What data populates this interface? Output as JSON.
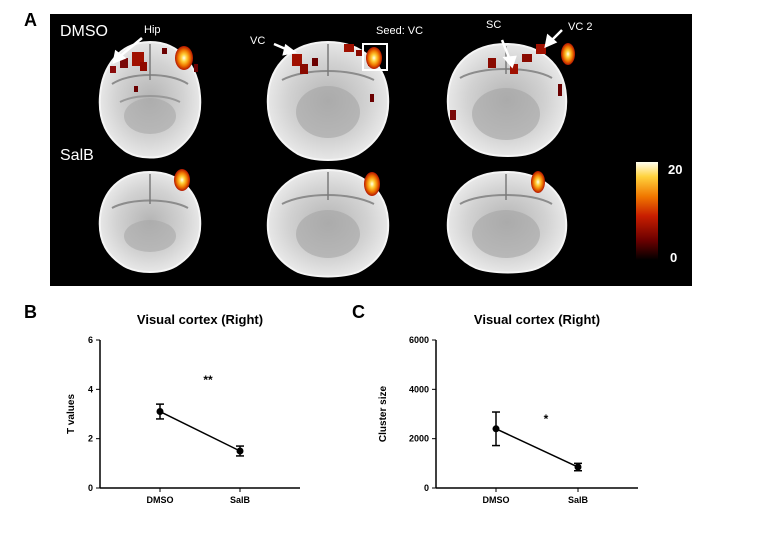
{
  "panel_a": {
    "label": "A",
    "rows": [
      {
        "label": "DMSO",
        "annotations": [
          "Hip",
          "VC",
          "Seed: VC",
          "SC",
          "VC 2"
        ]
      },
      {
        "label": "SalB",
        "annotations": []
      }
    ],
    "colorbar": {
      "max_label": "20",
      "min_label": "0",
      "colors": [
        "#000000",
        "#6b0000",
        "#c81e00",
        "#f07800",
        "#ffd23c",
        "#fffff0"
      ]
    }
  },
  "chart_data": [
    {
      "panel_label": "B",
      "type": "line",
      "title": "Visual cortex (Right)",
      "xlabel": "",
      "ylabel": "T values",
      "categories": [
        "DMSO",
        "SalB"
      ],
      "values": [
        3.1,
        1.5
      ],
      "errors": [
        0.3,
        0.2
      ],
      "ylim": [
        0,
        6
      ],
      "yticks": [
        0,
        2,
        4,
        6
      ],
      "significance": "**",
      "grid": false
    },
    {
      "panel_label": "C",
      "type": "line",
      "title": "Visual cortex (Right)",
      "xlabel": "",
      "ylabel": "Cluster size",
      "categories": [
        "DMSO",
        "SalB"
      ],
      "values": [
        2400,
        850
      ],
      "errors": [
        680,
        150
      ],
      "ylim": [
        0,
        6000
      ],
      "yticks": [
        0,
        2000,
        4000,
        6000
      ],
      "significance": "*",
      "grid": false
    }
  ]
}
